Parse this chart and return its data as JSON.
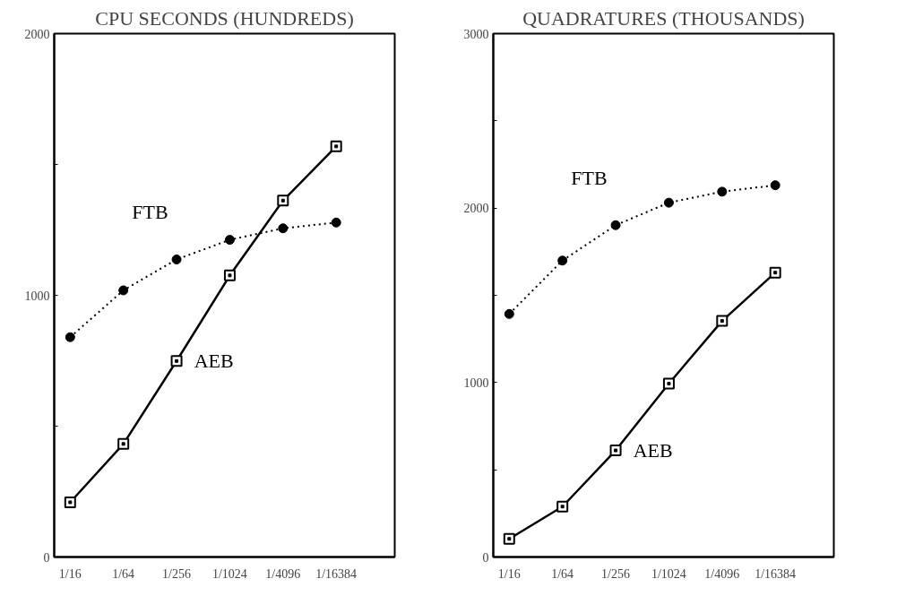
{
  "chart_data": [
    {
      "type": "line",
      "title": "CPU SECONDS (HUNDREDS)",
      "categories": [
        "1/16",
        "1/64",
        "1/256",
        "1/1024",
        "1/4096",
        "1/16384"
      ],
      "ylim": [
        0,
        2000
      ],
      "yticks": [
        0,
        {
          "value": 500,
          "label": null
        },
        1000,
        {
          "value": 1500,
          "label": null
        },
        2000
      ],
      "grid": false,
      "series": [
        {
          "name": "FTB",
          "color": "#000000",
          "line_style": "dotted",
          "marker": "circle",
          "values": [
            840,
            1019,
            1137,
            1212,
            1256,
            1278
          ]
        },
        {
          "name": "AEB",
          "color": "#000000",
          "line_style": "solid",
          "marker": "square",
          "values": [
            209,
            432,
            749,
            1076,
            1362,
            1569
          ]
        }
      ]
    },
    {
      "type": "line",
      "title": "QUADRATURES (THOUSANDS)",
      "categories": [
        "1/16",
        "1/64",
        "1/256",
        "1/1024",
        "1/4096",
        "1/16384"
      ],
      "ylim": [
        0,
        3000
      ],
      "yticks": [
        0,
        {
          "value": 500,
          "label": null
        },
        1000,
        {
          "value": 1500,
          "label": null
        },
        2000,
        {
          "value": 2500,
          "label": null
        },
        3000
      ],
      "grid": false,
      "series": [
        {
          "name": "FTB",
          "color": "#000000",
          "line_style": "dotted",
          "marker": "circle",
          "values": [
            1393,
            1699,
            1902,
            2031,
            2094,
            2131
          ]
        },
        {
          "name": "AEB",
          "color": "#000000",
          "line_style": "solid",
          "marker": "square",
          "values": [
            104,
            289,
            611,
            994,
            1353,
            1630
          ]
        }
      ]
    }
  ]
}
